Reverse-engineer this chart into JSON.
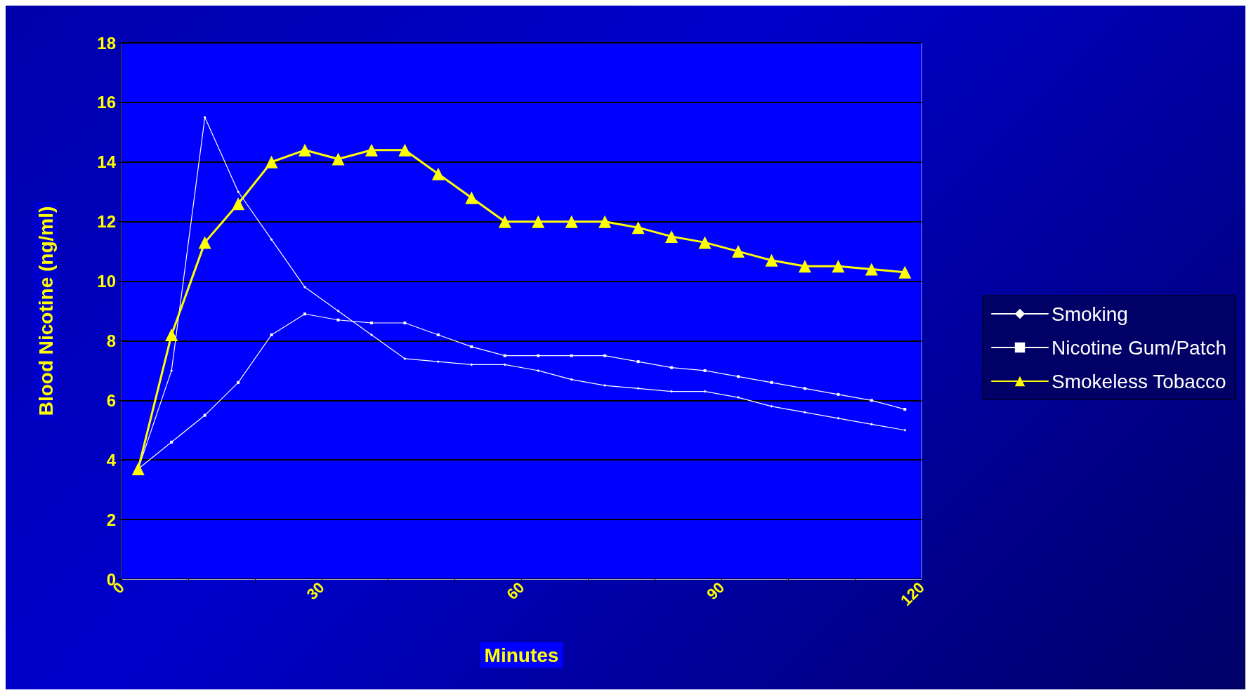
{
  "chart_data": {
    "type": "line",
    "xlabel": "Minutes",
    "ylabel": "Blood Nicotine (ng/ml)",
    "x": [
      2.5,
      7.5,
      12.5,
      17.5,
      22.5,
      27.5,
      32.5,
      37.5,
      42.5,
      47.5,
      52.5,
      57.5,
      62.5,
      67.5,
      72.5,
      77.5,
      82.5,
      87.5,
      92.5,
      97.5,
      102.5,
      107.5,
      112.5,
      117.5
    ],
    "xlim": [
      0,
      120
    ],
    "xticks": [
      0,
      {
        "value": 10,
        "label": null
      },
      {
        "value": 20,
        "label": null
      },
      30,
      {
        "value": 40,
        "label": null
      },
      {
        "value": 50,
        "label": null
      },
      60,
      {
        "value": 70,
        "label": null
      },
      {
        "value": 80,
        "label": null
      },
      90,
      {
        "value": 100,
        "label": null
      },
      {
        "value": 110,
        "label": null
      },
      120
    ],
    "ylim": [
      0,
      18
    ],
    "yticks": [
      0,
      2,
      4,
      6,
      8,
      10,
      12,
      14,
      16,
      18
    ],
    "grid": "y",
    "legend": "right",
    "series": [
      {
        "name": "Smoking",
        "color": "#ffffff",
        "marker": "diamond",
        "values": [
          3.7,
          7.0,
          15.5,
          13.0,
          11.4,
          9.8,
          9.0,
          8.2,
          7.4,
          7.3,
          7.2,
          7.2,
          7.0,
          6.7,
          6.5,
          6.4,
          6.3,
          6.3,
          6.1,
          5.8,
          5.6,
          5.4,
          5.2,
          5.0
        ]
      },
      {
        "name": "Nicotine Gum/Patch",
        "color": "#ffffff",
        "marker": "square",
        "values": [
          3.7,
          4.6,
          5.5,
          6.6,
          8.2,
          8.9,
          8.7,
          8.6,
          8.6,
          8.2,
          7.8,
          7.5,
          7.5,
          7.5,
          7.5,
          7.3,
          7.1,
          7.0,
          6.8,
          6.6,
          6.4,
          6.2,
          6.0,
          5.7
        ]
      },
      {
        "name": "Smokeless Tobacco",
        "color": "#ffff00",
        "marker": "triangle",
        "values": [
          3.7,
          8.2,
          11.3,
          12.6,
          14.0,
          14.4,
          14.1,
          14.4,
          14.4,
          13.6,
          12.8,
          12.0,
          12.0,
          12.0,
          12.0,
          11.8,
          11.5,
          11.3,
          11.0,
          10.7,
          10.5,
          10.5,
          10.4,
          10.3
        ]
      }
    ]
  }
}
